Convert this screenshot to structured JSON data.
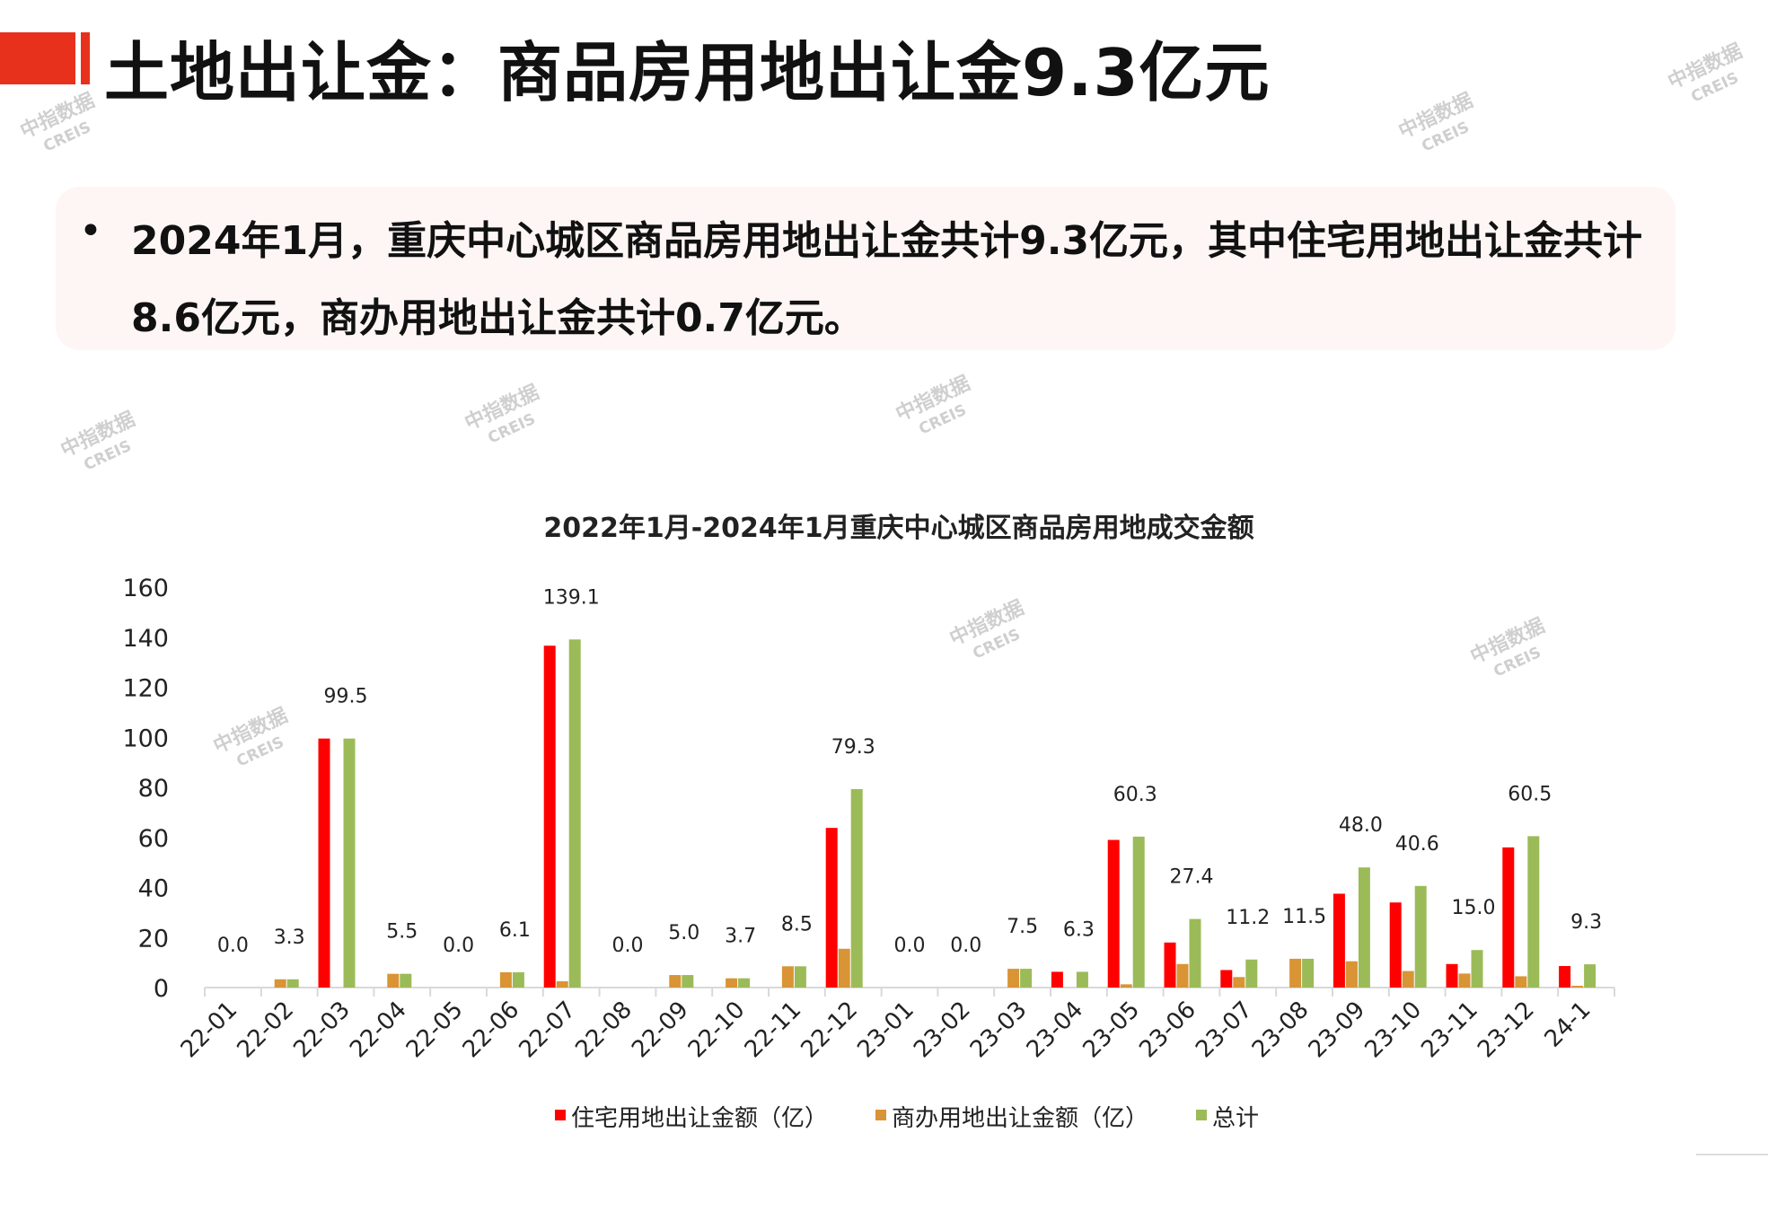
{
  "header": {
    "title": "土地出让金：商品房用地出让金9.3亿元"
  },
  "summary": {
    "bullet": "•",
    "text": "2024年1月，重庆中心城区商品房用地出让金共计9.3亿元，其中住宅用地出让金共计8.6亿元，商办用地出让金共计0.7亿元。"
  },
  "watermark": {
    "cn": "中指数据",
    "en": "CREIS"
  },
  "chart_data": {
    "type": "bar",
    "title": "2022年1月-2024年1月重庆中心城区商品房用地成交金额",
    "xlabel": "",
    "ylabel": "",
    "ylim": [
      0,
      160
    ],
    "yticks": [
      0,
      20,
      40,
      60,
      80,
      100,
      120,
      140,
      160
    ],
    "grid": false,
    "legend_position": "bottom",
    "categories": [
      "22-01",
      "22-02",
      "22-03",
      "22-04",
      "22-05",
      "22-06",
      "22-07",
      "22-08",
      "22-09",
      "22-10",
      "22-11",
      "22-12",
      "23-01",
      "23-02",
      "23-03",
      "23-04",
      "23-05",
      "23-06",
      "23-07",
      "23-08",
      "23-09",
      "23-10",
      "23-11",
      "23-12",
      "24-1"
    ],
    "series": [
      {
        "name": "住宅用地出让金额（亿）",
        "color": "#ff0000",
        "values": [
          0,
          0,
          99.5,
          0,
          0,
          0,
          136.6,
          0,
          0,
          0,
          0,
          63.8,
          0,
          0,
          0,
          6.3,
          59.0,
          18.0,
          7.0,
          0,
          37.5,
          34.0,
          9.4,
          56.0,
          8.6
        ]
      },
      {
        "name": "商办用地出让金额（亿）",
        "color": "#d99435",
        "values": [
          0,
          3.3,
          0,
          5.5,
          0,
          6.1,
          2.5,
          0,
          5.0,
          3.7,
          8.5,
          15.5,
          0,
          0,
          7.5,
          0,
          1.3,
          9.4,
          4.2,
          11.5,
          10.5,
          6.6,
          5.6,
          4.5,
          0.7
        ]
      },
      {
        "name": "总计",
        "color": "#9bbb59",
        "values": [
          0,
          3.3,
          99.5,
          5.5,
          0,
          6.1,
          139.1,
          0,
          5.0,
          3.7,
          8.5,
          79.3,
          0,
          0,
          7.5,
          6.3,
          60.3,
          27.4,
          11.2,
          11.5,
          48.0,
          40.6,
          15.0,
          60.5,
          9.3
        ]
      }
    ],
    "data_labels": [
      "0.0",
      "3.3",
      "99.5",
      "5.5",
      "0.0",
      "6.1",
      "139.1",
      "0.0",
      "5.0",
      "3.7",
      "8.5",
      "79.3",
      "0.0",
      "0.0",
      "7.5",
      "6.3",
      "60.3",
      "27.4",
      "11.2",
      "11.5",
      "48.0",
      "40.6",
      "15.0",
      "60.5",
      "9.3"
    ]
  }
}
